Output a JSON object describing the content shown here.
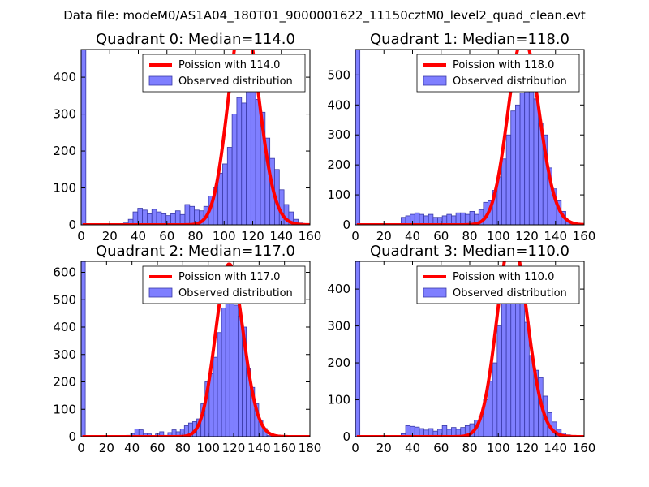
{
  "figure": {
    "suptitle": "Data file: modeM0/AS1A04_180T01_9000001622_11150cztM0_level2_quad_clean.evt"
  },
  "colors": {
    "hist_fill": "#7f7fff",
    "hist_edge": "#3a3aa8",
    "curve": "#ff0000"
  },
  "chart_data": [
    {
      "type": "bar",
      "title": "Quadrant 0: Median=114.0",
      "median": 114.0,
      "xlim": [
        0,
        160
      ],
      "ylim": [
        0,
        475
      ],
      "xticks": [
        0,
        20,
        40,
        60,
        80,
        100,
        120,
        140,
        160
      ],
      "yticks": [
        0,
        100,
        200,
        300,
        400
      ],
      "legend": {
        "position": "top-right",
        "entries": [
          "Poission with 114.0",
          "Observed distribution"
        ]
      },
      "bin_width": 3.3,
      "bins": [
        {
          "x": 0,
          "count": 475
        },
        {
          "x": 3.3,
          "count": 0
        },
        {
          "x": 6.6,
          "count": 0
        },
        {
          "x": 9.9,
          "count": 0
        },
        {
          "x": 13.2,
          "count": 0
        },
        {
          "x": 16.5,
          "count": 0
        },
        {
          "x": 19.8,
          "count": 0
        },
        {
          "x": 23.1,
          "count": 0
        },
        {
          "x": 26.4,
          "count": 3
        },
        {
          "x": 29.7,
          "count": 5
        },
        {
          "x": 33,
          "count": 15
        },
        {
          "x": 36.3,
          "count": 35
        },
        {
          "x": 39.6,
          "count": 45
        },
        {
          "x": 42.9,
          "count": 40
        },
        {
          "x": 46.2,
          "count": 30
        },
        {
          "x": 49.5,
          "count": 42
        },
        {
          "x": 52.8,
          "count": 35
        },
        {
          "x": 56.1,
          "count": 30
        },
        {
          "x": 59.4,
          "count": 25
        },
        {
          "x": 62.7,
          "count": 30
        },
        {
          "x": 66,
          "count": 38
        },
        {
          "x": 69.3,
          "count": 28
        },
        {
          "x": 72.6,
          "count": 55
        },
        {
          "x": 75.9,
          "count": 50
        },
        {
          "x": 79.2,
          "count": 40
        },
        {
          "x": 82.5,
          "count": 38
        },
        {
          "x": 85.8,
          "count": 50
        },
        {
          "x": 89.1,
          "count": 78
        },
        {
          "x": 92.4,
          "count": 100
        },
        {
          "x": 95.7,
          "count": 140
        },
        {
          "x": 99,
          "count": 165
        },
        {
          "x": 102.3,
          "count": 210
        },
        {
          "x": 105.6,
          "count": 300
        },
        {
          "x": 108.9,
          "count": 345
        },
        {
          "x": 112.2,
          "count": 330
        },
        {
          "x": 115.5,
          "count": 440
        },
        {
          "x": 118.8,
          "count": 450
        },
        {
          "x": 122.1,
          "count": 340
        },
        {
          "x": 125.4,
          "count": 305
        },
        {
          "x": 128.7,
          "count": 235
        },
        {
          "x": 132,
          "count": 180
        },
        {
          "x": 135.3,
          "count": 150
        },
        {
          "x": 138.6,
          "count": 95
        },
        {
          "x": 141.9,
          "count": 55
        },
        {
          "x": 145.2,
          "count": 35
        },
        {
          "x": 148.5,
          "count": 15
        },
        {
          "x": 151.8,
          "count": 5
        }
      ]
    },
    {
      "type": "bar",
      "title": "Quadrant 1: Median=118.0",
      "median": 118.0,
      "xlim": [
        0,
        160
      ],
      "ylim": [
        0,
        585
      ],
      "xticks": [
        0,
        20,
        40,
        60,
        80,
        100,
        120,
        140,
        160
      ],
      "yticks": [
        0,
        100,
        200,
        300,
        400,
        500
      ],
      "legend": {
        "position": "top-right",
        "entries": [
          "Poission with 118.0",
          "Observed distribution"
        ]
      },
      "bin_width": 3.2,
      "bins": [
        {
          "x": 0,
          "count": 585
        },
        {
          "x": 3.2,
          "count": 0
        },
        {
          "x": 6.4,
          "count": 0
        },
        {
          "x": 9.6,
          "count": 0
        },
        {
          "x": 12.8,
          "count": 0
        },
        {
          "x": 16,
          "count": 0
        },
        {
          "x": 19.2,
          "count": 0
        },
        {
          "x": 22.4,
          "count": 0
        },
        {
          "x": 25.6,
          "count": 0
        },
        {
          "x": 28.8,
          "count": 2
        },
        {
          "x": 32,
          "count": 25
        },
        {
          "x": 35.2,
          "count": 30
        },
        {
          "x": 38.4,
          "count": 35
        },
        {
          "x": 41.6,
          "count": 40
        },
        {
          "x": 44.8,
          "count": 35
        },
        {
          "x": 48,
          "count": 30
        },
        {
          "x": 51.2,
          "count": 35
        },
        {
          "x": 54.4,
          "count": 25
        },
        {
          "x": 57.6,
          "count": 25
        },
        {
          "x": 60.8,
          "count": 30
        },
        {
          "x": 64,
          "count": 35
        },
        {
          "x": 67.2,
          "count": 30
        },
        {
          "x": 70.4,
          "count": 40
        },
        {
          "x": 73.6,
          "count": 40
        },
        {
          "x": 76.8,
          "count": 35
        },
        {
          "x": 80,
          "count": 45
        },
        {
          "x": 83.2,
          "count": 35
        },
        {
          "x": 86.4,
          "count": 50
        },
        {
          "x": 89.6,
          "count": 75
        },
        {
          "x": 92.8,
          "count": 80
        },
        {
          "x": 96,
          "count": 115
        },
        {
          "x": 99.2,
          "count": 160
        },
        {
          "x": 102.4,
          "count": 220
        },
        {
          "x": 105.6,
          "count": 300
        },
        {
          "x": 108.8,
          "count": 380
        },
        {
          "x": 112,
          "count": 400
        },
        {
          "x": 115.2,
          "count": 440
        },
        {
          "x": 118.4,
          "count": 460
        },
        {
          "x": 121.6,
          "count": 570
        },
        {
          "x": 124.8,
          "count": 420
        },
        {
          "x": 128,
          "count": 340
        },
        {
          "x": 131.2,
          "count": 300
        },
        {
          "x": 134.4,
          "count": 190
        },
        {
          "x": 137.6,
          "count": 120
        },
        {
          "x": 140.8,
          "count": 80
        },
        {
          "x": 144,
          "count": 45
        },
        {
          "x": 147.2,
          "count": 10
        },
        {
          "x": 150.4,
          "count": 5
        }
      ]
    },
    {
      "type": "bar",
      "title": "Quadrant 2: Median=117.0",
      "median": 117.0,
      "xlim": [
        0,
        180
      ],
      "ylim": [
        0,
        640
      ],
      "xticks": [
        0,
        20,
        40,
        60,
        80,
        100,
        120,
        140,
        160,
        180
      ],
      "yticks": [
        0,
        100,
        200,
        300,
        400,
        500,
        600
      ],
      "legend": {
        "position": "top-right",
        "entries": [
          "Poission with 117.0",
          "Observed distribution"
        ]
      },
      "bin_width": 3.25,
      "bins": [
        {
          "x": 0,
          "count": 640
        },
        {
          "x": 3.25,
          "count": 0
        },
        {
          "x": 6.5,
          "count": 0
        },
        {
          "x": 9.75,
          "count": 0
        },
        {
          "x": 13,
          "count": 0
        },
        {
          "x": 16.25,
          "count": 0
        },
        {
          "x": 19.5,
          "count": 0
        },
        {
          "x": 22.75,
          "count": 0
        },
        {
          "x": 26,
          "count": 0
        },
        {
          "x": 29.25,
          "count": 0
        },
        {
          "x": 32.5,
          "count": 0
        },
        {
          "x": 35.75,
          "count": 5
        },
        {
          "x": 39,
          "count": 12
        },
        {
          "x": 42.25,
          "count": 28
        },
        {
          "x": 45.5,
          "count": 25
        },
        {
          "x": 48.75,
          "count": 12
        },
        {
          "x": 52,
          "count": 10
        },
        {
          "x": 55.25,
          "count": 0
        },
        {
          "x": 58.5,
          "count": 10
        },
        {
          "x": 61.75,
          "count": 18
        },
        {
          "x": 65,
          "count": 5
        },
        {
          "x": 68.25,
          "count": 15
        },
        {
          "x": 71.5,
          "count": 25
        },
        {
          "x": 74.75,
          "count": 18
        },
        {
          "x": 78,
          "count": 28
        },
        {
          "x": 81.25,
          "count": 40
        },
        {
          "x": 84.5,
          "count": 50
        },
        {
          "x": 87.75,
          "count": 55
        },
        {
          "x": 91,
          "count": 65
        },
        {
          "x": 94.25,
          "count": 120
        },
        {
          "x": 97.5,
          "count": 200
        },
        {
          "x": 100.75,
          "count": 230
        },
        {
          "x": 104,
          "count": 290
        },
        {
          "x": 107.25,
          "count": 380
        },
        {
          "x": 110.5,
          "count": 470
        },
        {
          "x": 113.75,
          "count": 590
        },
        {
          "x": 117,
          "count": 590
        },
        {
          "x": 120.25,
          "count": 480
        },
        {
          "x": 123.5,
          "count": 440
        },
        {
          "x": 126.75,
          "count": 400
        },
        {
          "x": 130,
          "count": 250
        },
        {
          "x": 133.25,
          "count": 180
        },
        {
          "x": 136.5,
          "count": 120
        },
        {
          "x": 139.75,
          "count": 60
        },
        {
          "x": 143,
          "count": 30
        },
        {
          "x": 146.25,
          "count": 5
        },
        {
          "x": 149.5,
          "count": 2
        }
      ]
    },
    {
      "type": "bar",
      "title": "Quadrant 3: Median=110.0",
      "median": 110.0,
      "xlim": [
        0,
        160
      ],
      "ylim": [
        0,
        475
      ],
      "xticks": [
        0,
        20,
        40,
        60,
        80,
        100,
        120,
        140,
        160
      ],
      "yticks": [
        0,
        100,
        200,
        300,
        400
      ],
      "legend": {
        "position": "top-right",
        "entries": [
          "Poission with 110.0",
          "Observed distribution"
        ]
      },
      "bin_width": 3.2,
      "bins": [
        {
          "x": 0,
          "count": 475
        },
        {
          "x": 3.2,
          "count": 0
        },
        {
          "x": 6.4,
          "count": 0
        },
        {
          "x": 9.6,
          "count": 0
        },
        {
          "x": 12.8,
          "count": 0
        },
        {
          "x": 16,
          "count": 0
        },
        {
          "x": 19.2,
          "count": 0
        },
        {
          "x": 22.4,
          "count": 0
        },
        {
          "x": 25.6,
          "count": 0
        },
        {
          "x": 28.8,
          "count": 0
        },
        {
          "x": 32,
          "count": 8
        },
        {
          "x": 35.2,
          "count": 30
        },
        {
          "x": 38.4,
          "count": 28
        },
        {
          "x": 41.6,
          "count": 26
        },
        {
          "x": 44.8,
          "count": 22
        },
        {
          "x": 48,
          "count": 18
        },
        {
          "x": 51.2,
          "count": 22
        },
        {
          "x": 54.4,
          "count": 15
        },
        {
          "x": 57.6,
          "count": 20
        },
        {
          "x": 60.8,
          "count": 30
        },
        {
          "x": 64,
          "count": 20
        },
        {
          "x": 67.2,
          "count": 25
        },
        {
          "x": 70.4,
          "count": 20
        },
        {
          "x": 73.6,
          "count": 25
        },
        {
          "x": 76.8,
          "count": 30
        },
        {
          "x": 80,
          "count": 35
        },
        {
          "x": 83.2,
          "count": 45
        },
        {
          "x": 86.4,
          "count": 55
        },
        {
          "x": 89.6,
          "count": 100
        },
        {
          "x": 92.8,
          "count": 150
        },
        {
          "x": 96,
          "count": 200
        },
        {
          "x": 99.2,
          "count": 300
        },
        {
          "x": 102.4,
          "count": 390
        },
        {
          "x": 105.6,
          "count": 420
        },
        {
          "x": 108.8,
          "count": 440
        },
        {
          "x": 112,
          "count": 435
        },
        {
          "x": 115.2,
          "count": 400
        },
        {
          "x": 118.4,
          "count": 310
        },
        {
          "x": 121.6,
          "count": 220
        },
        {
          "x": 124.8,
          "count": 180
        },
        {
          "x": 128,
          "count": 160
        },
        {
          "x": 131.2,
          "count": 110
        },
        {
          "x": 134.4,
          "count": 65
        },
        {
          "x": 137.6,
          "count": 40
        },
        {
          "x": 140.8,
          "count": 20
        },
        {
          "x": 144,
          "count": 10
        },
        {
          "x": 147.2,
          "count": 5
        }
      ]
    }
  ]
}
